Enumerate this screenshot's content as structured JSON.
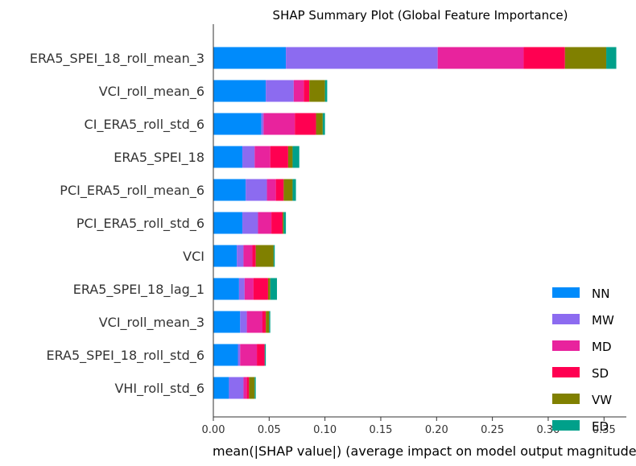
{
  "chart_data": {
    "type": "bar",
    "orientation": "horizontal",
    "stacked": true,
    "title": "SHAP Summary Plot (Global Feature Importance)",
    "xlabel": "mean(|SHAP value|) (average impact on model output magnitude)",
    "ylabel": "",
    "xlim": [
      0,
      0.37
    ],
    "xticks": [
      "0.00",
      "0.05",
      "0.10",
      "0.15",
      "0.20",
      "0.25",
      "0.30",
      "0.35"
    ],
    "grid": false,
    "legend_position": "bottom-right",
    "categories": [
      "ERA5_SPEI_18_roll_mean_3",
      "VCI_roll_mean_6",
      "CI_ERA5_roll_std_6",
      "ERA5_SPEI_18",
      "PCI_ERA5_roll_mean_6",
      "PCI_ERA5_roll_std_6",
      "VCI",
      "ERA5_SPEI_18_lag_1",
      "VCI_roll_mean_3",
      "ERA5_SPEI_18_roll_std_6",
      "VHI_roll_std_6"
    ],
    "series": [
      {
        "name": "NN",
        "color": "#008bfb",
        "values": [
          0.065,
          0.047,
          0.043,
          0.026,
          0.029,
          0.026,
          0.021,
          0.023,
          0.024,
          0.022,
          0.014
        ]
      },
      {
        "name": "MW",
        "color": "#8c6bf0",
        "values": [
          0.136,
          0.025,
          0.002,
          0.011,
          0.019,
          0.014,
          0.006,
          0.005,
          0.006,
          0.002,
          0.013
        ]
      },
      {
        "name": "MD",
        "color": "#e8239d",
        "values": [
          0.077,
          0.009,
          0.028,
          0.014,
          0.008,
          0.012,
          0.008,
          0.008,
          0.014,
          0.015,
          0.003
        ]
      },
      {
        "name": "SD",
        "color": "#ff0051",
        "values": [
          0.037,
          0.005,
          0.019,
          0.016,
          0.007,
          0.01,
          0.003,
          0.013,
          0.003,
          0.007,
          0.002
        ]
      },
      {
        "name": "VW",
        "color": "#808000",
        "values": [
          0.037,
          0.014,
          0.006,
          0.004,
          0.008,
          0.001,
          0.016,
          0.002,
          0.003,
          0.0,
          0.005
        ]
      },
      {
        "name": "ED",
        "color": "#00a08a",
        "values": [
          0.009,
          0.002,
          0.002,
          0.006,
          0.003,
          0.002,
          0.001,
          0.006,
          0.001,
          0.001,
          0.001
        ]
      }
    ]
  }
}
